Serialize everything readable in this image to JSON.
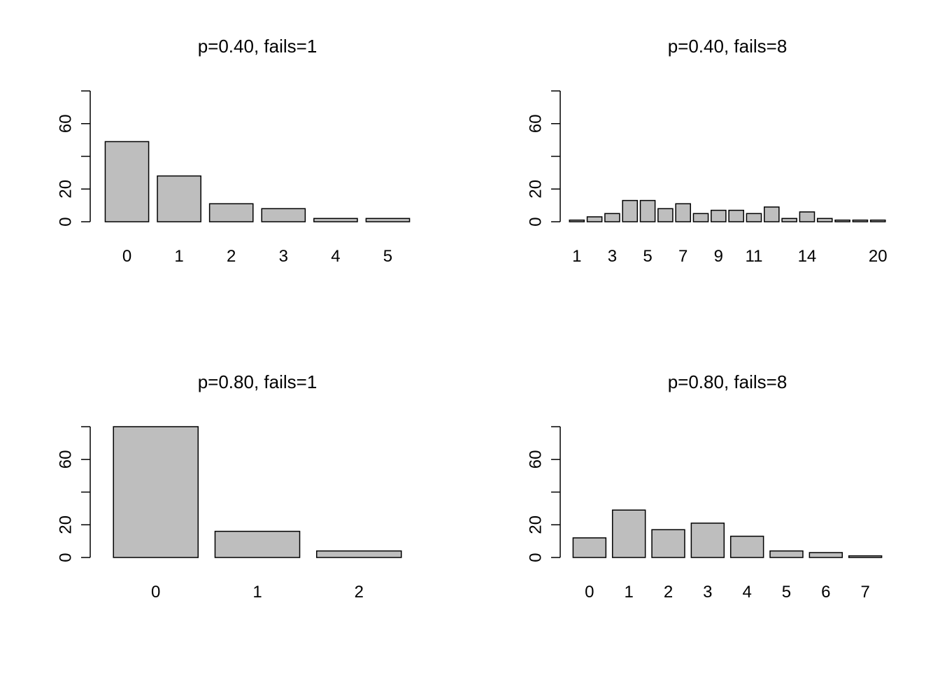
{
  "chart_data": [
    {
      "type": "bar",
      "title": "p=0.40, fails=1",
      "xlabel": "",
      "ylabel": "",
      "ylim": [
        0,
        80
      ],
      "yticks": [
        0,
        20,
        40,
        60,
        80
      ],
      "ytick_labels": [
        "0",
        "20",
        "60"
      ],
      "categories": [
        "0",
        "1",
        "2",
        "3",
        "4",
        "5"
      ],
      "values": [
        49,
        28,
        11,
        8,
        2,
        2
      ],
      "xtick_labels": [
        "0",
        "1",
        "2",
        "3",
        "4",
        "5"
      ]
    },
    {
      "type": "bar",
      "title": "p=0.40, fails=8",
      "xlabel": "",
      "ylabel": "",
      "ylim": [
        0,
        80
      ],
      "yticks": [
        0,
        20,
        40,
        60,
        80
      ],
      "ytick_labels": [
        "0",
        "20",
        "60"
      ],
      "categories": [
        "1",
        "2",
        "3",
        "4",
        "5",
        "6",
        "7",
        "8",
        "9",
        "10",
        "11",
        "12",
        "13",
        "14",
        "15",
        "18",
        "19",
        "20"
      ],
      "values": [
        1,
        3,
        5,
        13,
        13,
        8,
        11,
        5,
        7,
        7,
        5,
        9,
        2,
        6,
        2,
        1,
        1,
        1
      ],
      "xtick_labels": [
        "1",
        "3",
        "5",
        "7",
        "9",
        "11",
        "14",
        "20"
      ]
    },
    {
      "type": "bar",
      "title": "p=0.80, fails=1",
      "xlabel": "",
      "ylabel": "",
      "ylim": [
        0,
        80
      ],
      "yticks": [
        0,
        20,
        40,
        60,
        80
      ],
      "ytick_labels": [
        "0",
        "20",
        "60"
      ],
      "categories": [
        "0",
        "1",
        "2"
      ],
      "values": [
        80,
        16,
        4
      ],
      "xtick_labels": [
        "0",
        "1",
        "2"
      ]
    },
    {
      "type": "bar",
      "title": "p=0.80, fails=8",
      "xlabel": "",
      "ylabel": "",
      "ylim": [
        0,
        80
      ],
      "yticks": [
        0,
        20,
        40,
        60,
        80
      ],
      "ytick_labels": [
        "0",
        "20",
        "60"
      ],
      "categories": [
        "0",
        "1",
        "2",
        "3",
        "4",
        "5",
        "6",
        "7"
      ],
      "values": [
        12,
        29,
        17,
        21,
        13,
        4,
        3,
        1
      ],
      "xtick_labels": [
        "0",
        "1",
        "2",
        "3",
        "4",
        "5",
        "6",
        "7"
      ]
    }
  ],
  "style": {
    "bar_fill": "#bebebe",
    "bar_stroke": "#000000",
    "axis_color": "#000000",
    "background": "#ffffff"
  }
}
